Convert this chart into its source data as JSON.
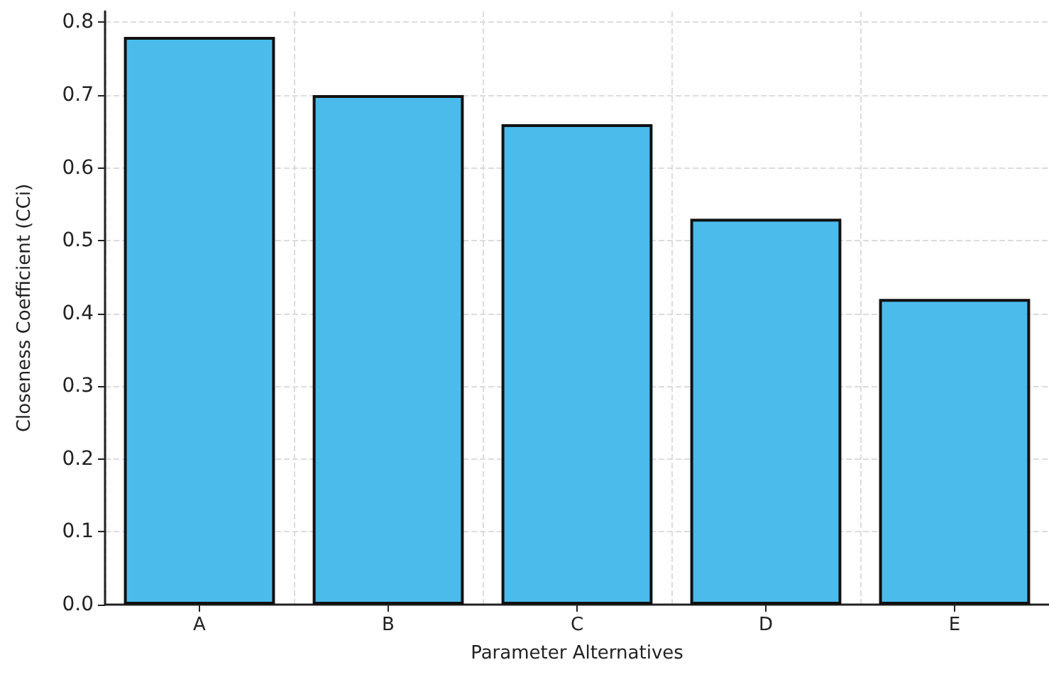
{
  "chart_data": {
    "type": "bar",
    "xlabel": "Parameter Alternatives",
    "ylabel": "Closeness Coefficient (CCi)",
    "categories": [
      "A",
      "B",
      "C",
      "D",
      "E"
    ],
    "values": [
      0.78,
      0.7,
      0.66,
      0.53,
      0.42
    ],
    "color": "#4bbbec",
    "ylim": [
      0,
      0.815
    ],
    "yticks": [
      {
        "value": 0,
        "label": "0.0"
      },
      0.1,
      0.2,
      0.3,
      0.4,
      0.5,
      0.6,
      0.7,
      0.8
    ],
    "grid": true
  }
}
